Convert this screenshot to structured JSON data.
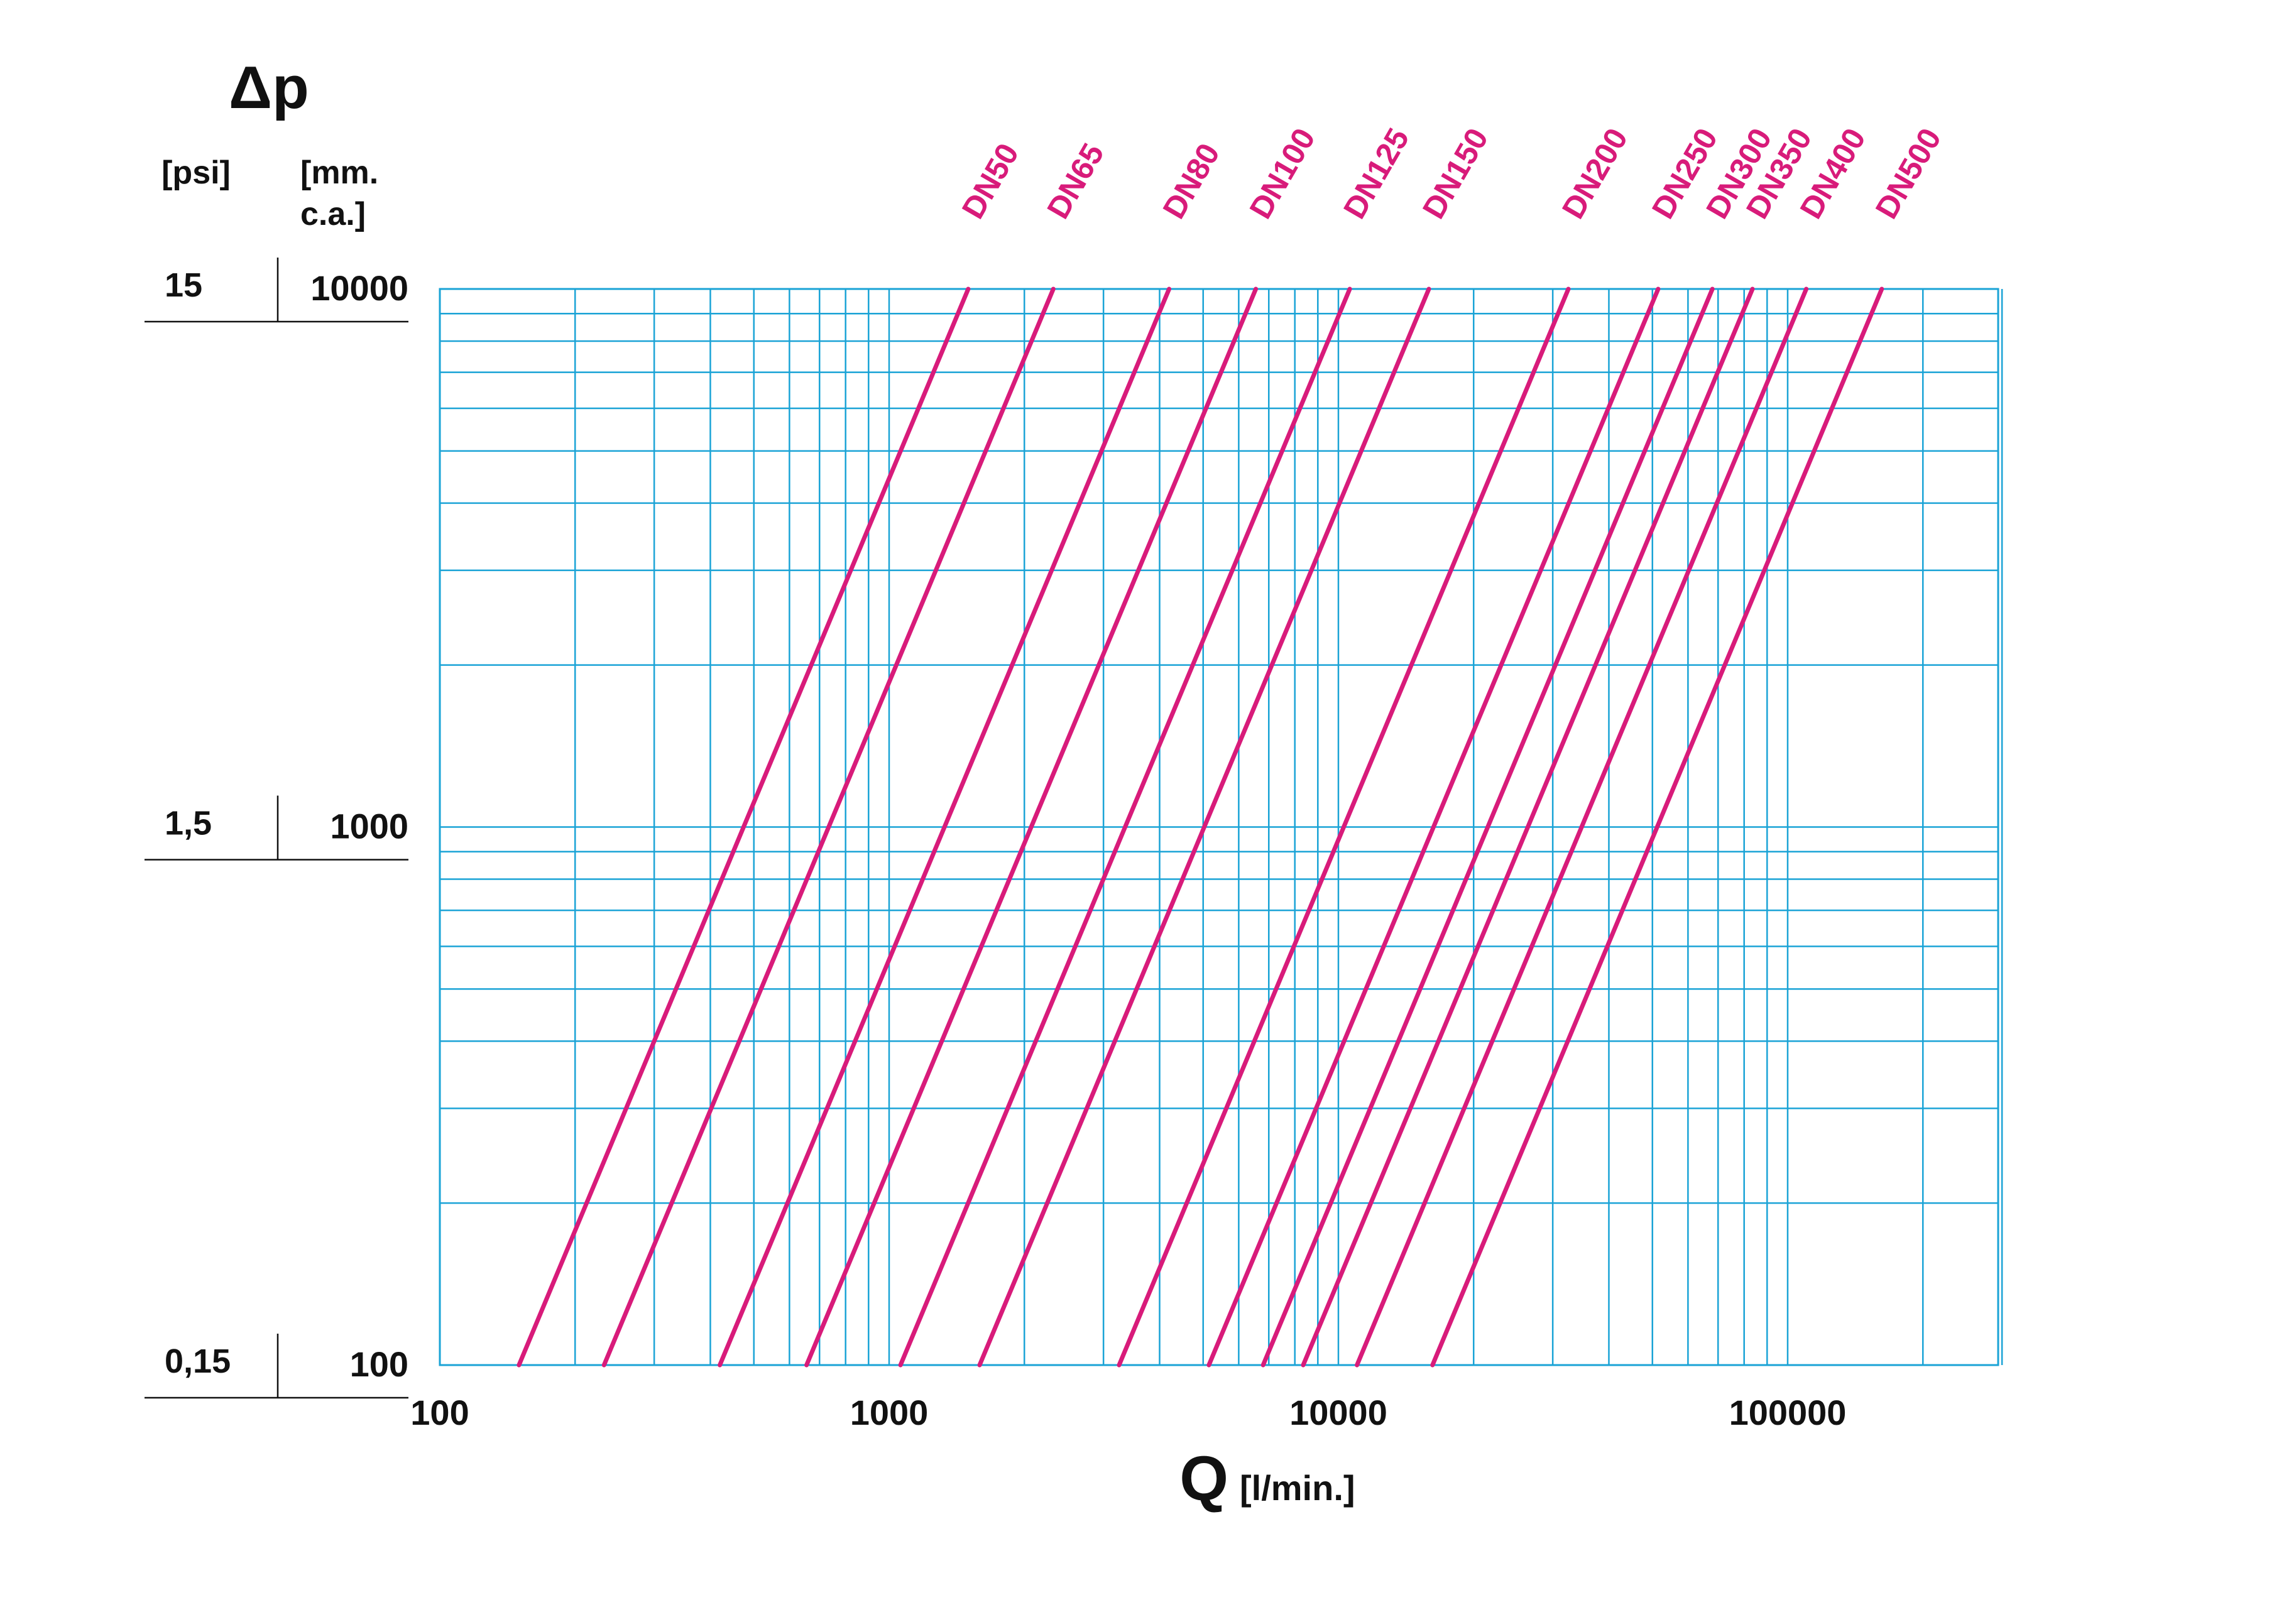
{
  "colors": {
    "grid": "#1aa3d6",
    "series": "#d81b7a",
    "text": "#111111"
  },
  "chart_data": {
    "type": "line",
    "x_scale": "log",
    "y_scale": "log",
    "xlim": [
      100,
      300000
    ],
    "ylim": [
      100,
      10000
    ],
    "grid": true,
    "xlabel": "Q",
    "xlabel_unit": "[l/min.]",
    "ylabel": "Δp",
    "y_unit_left": "[psi]",
    "y_unit_right": "[mm.\nc.a.]",
    "x_ticks": [
      {
        "value": 100,
        "label": "100"
      },
      {
        "value": 1000,
        "label": "1000"
      },
      {
        "value": 10000,
        "label": "10000"
      },
      {
        "value": 100000,
        "label": "100000"
      }
    ],
    "y_ticks": [
      {
        "value": 10000,
        "label": "10000",
        "psi_label": "15"
      },
      {
        "value": 1000,
        "label": "1000",
        "psi_label": "1,5"
      },
      {
        "value": 100,
        "label": "100",
        "psi_label": "0,15"
      }
    ],
    "series": [
      {
        "name": "DN50",
        "x": [
          150,
          1500
        ],
        "y": [
          100,
          10000
        ]
      },
      {
        "name": "DN65",
        "x": [
          232,
          2320
        ],
        "y": [
          100,
          10000
        ]
      },
      {
        "name": "DN80",
        "x": [
          420,
          4200
        ],
        "y": [
          100,
          10000
        ]
      },
      {
        "name": "DN100",
        "x": [
          655,
          6550
        ],
        "y": [
          100,
          10000
        ]
      },
      {
        "name": "DN125",
        "x": [
          1060,
          10600
        ],
        "y": [
          100,
          10000
        ]
      },
      {
        "name": "DN150",
        "x": [
          1590,
          15900
        ],
        "y": [
          100,
          10000
        ]
      },
      {
        "name": "DN200",
        "x": [
          3250,
          32500
        ],
        "y": [
          100,
          10000
        ]
      },
      {
        "name": "DN250",
        "x": [
          5150,
          51500
        ],
        "y": [
          100,
          10000
        ]
      },
      {
        "name": "DN300",
        "x": [
          6800,
          68000
        ],
        "y": [
          100,
          10000
        ]
      },
      {
        "name": "DN350",
        "x": [
          8350,
          83500
        ],
        "y": [
          100,
          10000
        ]
      },
      {
        "name": "DN400",
        "x": [
          11000,
          110000
        ],
        "y": [
          100,
          10000
        ]
      },
      {
        "name": "DN500",
        "x": [
          16200,
          162000
        ],
        "y": [
          100,
          10000
        ]
      }
    ]
  }
}
